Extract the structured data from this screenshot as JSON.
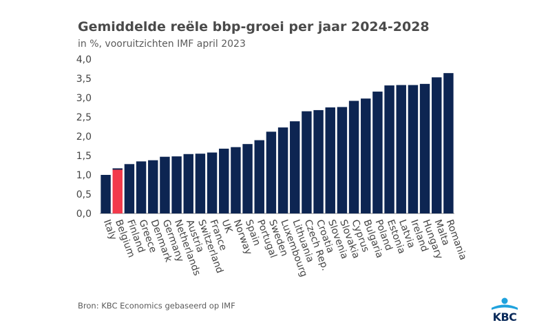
{
  "title": "Gemiddelde reële bbp-groei per jaar 2024-2028",
  "subtitle": "in %, vooruitzichten IMF april 2023",
  "source": "Bron: KBC Economics gebaseerd op IMF",
  "logo_text": "KBC",
  "colors": {
    "bar": "#0d2552",
    "highlight": "#f23a4c",
    "axis_text": "#444444",
    "grid": "#d9d9d9"
  },
  "chart_data": {
    "type": "bar",
    "title": "Gemiddelde reële bbp-groei per jaar 2024-2028",
    "subtitle": "in %, vooruitzichten IMF april 2023",
    "xlabel": "",
    "ylabel": "",
    "ylim": [
      0,
      4
    ],
    "yticks": [
      "0,0",
      "0,5",
      "1,0",
      "1,5",
      "2,0",
      "2,5",
      "3,0",
      "3,5",
      "4,0"
    ],
    "grid": false,
    "highlight": "Belgium",
    "categories": [
      "Italy",
      "Belgium",
      "Finland",
      "Greece",
      "Denmark",
      "Germany",
      "Netherlands",
      "Austria",
      "Switzerland",
      "France",
      "UK",
      "Norway",
      "Spain",
      "Portugal",
      "Sweden",
      "Luxembourg",
      "Lithuania",
      "Czech Rep.",
      "Croatia",
      "Slovenia",
      "Slovakia",
      "Cyprus",
      "Bulgaria",
      "Poland",
      "Estonia",
      "Latvia",
      "Ireland",
      "Hungary",
      "Malta",
      "Romania"
    ],
    "values": [
      1.0,
      1.17,
      1.28,
      1.35,
      1.38,
      1.47,
      1.48,
      1.54,
      1.55,
      1.58,
      1.68,
      1.72,
      1.8,
      1.9,
      2.12,
      2.23,
      2.39,
      2.65,
      2.68,
      2.75,
      2.76,
      2.92,
      2.98,
      3.16,
      3.32,
      3.33,
      3.33,
      3.36,
      3.53,
      3.64
    ]
  }
}
